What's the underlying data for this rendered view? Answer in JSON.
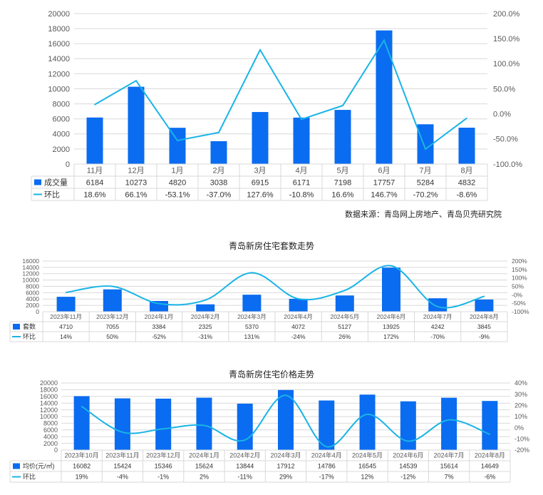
{
  "colors": {
    "bar": "#0a6cf0",
    "line": "#19b4e6",
    "grid": "#d9d9d9",
    "text": "#595959"
  },
  "chart_data": [
    {
      "type": "bar",
      "title": "",
      "categories": [
        "11月",
        "12月",
        "1月",
        "2月",
        "3月",
        "4月",
        "5月",
        "6月",
        "7月",
        "8月"
      ],
      "series": [
        {
          "name": "成交量",
          "kind": "bar",
          "axis": "left",
          "values": [
            6184,
            10273,
            4820,
            3038,
            6915,
            6171,
            7198,
            17757,
            5284,
            4832
          ]
        },
        {
          "name": "环比",
          "kind": "line",
          "axis": "right",
          "values": [
            18.6,
            66.1,
            -53.1,
            -37.0,
            127.6,
            -10.8,
            16.6,
            146.7,
            -70.2,
            -8.6
          ]
        }
      ],
      "table_rows": [
        [
          "6184",
          "10273",
          "4820",
          "3038",
          "6915",
          "6171",
          "7198",
          "17757",
          "5284",
          "4832"
        ],
        [
          "18.6%",
          "66.1%",
          "-53.1%",
          "-37.0%",
          "127.6%",
          "-10.8%",
          "16.6%",
          "146.7%",
          "-70.2%",
          "-8.6%"
        ]
      ],
      "y_left": {
        "min": 0,
        "max": 20000,
        "ticks": [
          "0",
          "2000",
          "4000",
          "6000",
          "8000",
          "10000",
          "12000",
          "14000",
          "16000",
          "18000",
          "20000"
        ]
      },
      "y_right": {
        "min": -100,
        "max": 200,
        "ticks": [
          "-100.0%",
          "-50.0%",
          "0.0%",
          "50.0%",
          "100.0%",
          "150.0%",
          "200.0%"
        ]
      },
      "smooth": false,
      "grid": true,
      "source": "数据来源：青岛网上房地产、青岛贝壳研究院"
    },
    {
      "type": "bar",
      "title": "青岛新房住宅套数走势",
      "categories": [
        "2023年11月",
        "2023年12月",
        "2024年1月",
        "2024年2月",
        "2024年3月",
        "2024年4月",
        "2024年5月",
        "2024年6月",
        "2024年7月",
        "2024年8月"
      ],
      "series": [
        {
          "name": "套数",
          "kind": "bar",
          "axis": "left",
          "values": [
            4710,
            7055,
            3384,
            2325,
            5370,
            4072,
            5127,
            13925,
            4242,
            3845
          ]
        },
        {
          "name": "环比",
          "kind": "line",
          "axis": "right",
          "values": [
            14,
            50,
            -52,
            -31,
            131,
            -24,
            26,
            172,
            -70,
            -9
          ]
        }
      ],
      "table_rows": [
        [
          "4710",
          "7055",
          "3384",
          "2325",
          "5370",
          "4072",
          "5127",
          "13925",
          "4242",
          "3845"
        ],
        [
          "14%",
          "50%",
          "-52%",
          "-31%",
          "131%",
          "-24%",
          "26%",
          "172%",
          "-70%",
          "-9%"
        ]
      ],
      "y_left": {
        "min": 0,
        "max": 16000,
        "ticks": [
          "0",
          "2000",
          "4000",
          "6000",
          "8000",
          "10000",
          "12000",
          "14000",
          "16000"
        ]
      },
      "y_right": {
        "min": -100,
        "max": 200,
        "ticks": [
          "-100%",
          "-50%",
          "-0%",
          "50%",
          "100%",
          "150%",
          "200%"
        ]
      },
      "y_right_extra_ticks": [
        "-50%",
        "0%",
        "50%",
        "100%",
        "150%"
      ],
      "smooth": true,
      "grid": true
    },
    {
      "type": "bar",
      "title": "青岛新房住宅价格走势",
      "categories": [
        "2023年10月",
        "2023年11月",
        "2023年12月",
        "2024年1月",
        "2024年2月",
        "2024年3月",
        "2024年4月",
        "2024年5月",
        "2024年6月",
        "2024年7月",
        "2024年8月"
      ],
      "series": [
        {
          "name": "均价(元/㎡)",
          "kind": "bar",
          "axis": "left",
          "values": [
            16082,
            15424,
            15346,
            15624,
            13844,
            17912,
            14786,
            16545,
            14539,
            15614,
            14649
          ]
        },
        {
          "name": "环比",
          "kind": "line",
          "axis": "right",
          "values": [
            19,
            -4,
            -1,
            2,
            -11,
            29,
            -17,
            12,
            -12,
            7,
            -6
          ]
        }
      ],
      "table_rows": [
        [
          "16082",
          "15424",
          "15346",
          "15624",
          "13844",
          "17912",
          "14786",
          "16545",
          "14539",
          "15614",
          "14649"
        ],
        [
          "19%",
          "-4%",
          "-1%",
          "2%",
          "-11%",
          "29%",
          "-17%",
          "12%",
          "-12%",
          "7%",
          "-6%"
        ]
      ],
      "y_left": {
        "min": 0,
        "max": 20000,
        "ticks": [
          "0",
          "2000",
          "4000",
          "6000",
          "8000",
          "10000",
          "12000",
          "14000",
          "16000",
          "18000",
          "20000"
        ]
      },
      "y_right": {
        "min": -20,
        "max": 40,
        "ticks": [
          "-20%",
          "-10%",
          "0%",
          "10%",
          "20%",
          "30%",
          "40%"
        ]
      },
      "smooth": true,
      "grid": true
    }
  ]
}
